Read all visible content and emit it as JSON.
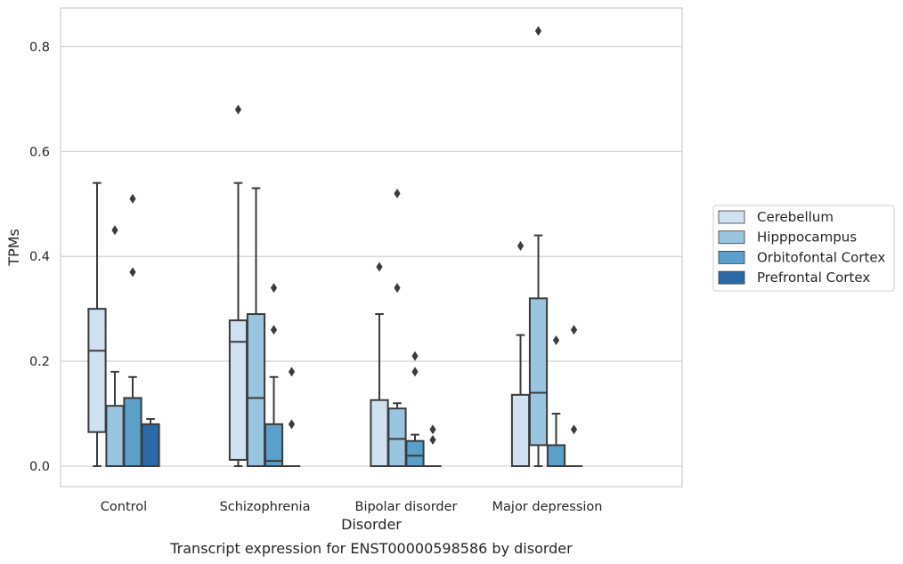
{
  "caption": "Transcript expression for ENST00000598586 by disorder",
  "chart_data": {
    "type": "box",
    "xlabel": "Disorder",
    "ylabel": "TPMs",
    "ylim": [
      -0.04,
      0.875
    ],
    "yticks": [
      "0.0",
      "0.2",
      "0.4",
      "0.6",
      "0.8"
    ],
    "grid": "horizontal",
    "legend_position": "right",
    "categories": [
      "Control",
      "Schizophrenia",
      "Bipolar disorder",
      "Major depression"
    ],
    "series": [
      {
        "name": "Cerebellum",
        "color": "#d0e1f2",
        "boxes": [
          {
            "whislo": 0.0,
            "q1": 0.065,
            "med": 0.22,
            "q3": 0.3,
            "whishi": 0.54,
            "fliers": []
          },
          {
            "whislo": 0.0,
            "q1": 0.012,
            "med": 0.237,
            "q3": 0.278,
            "whishi": 0.54,
            "fliers": [
              0.68
            ]
          },
          {
            "whislo": 0.0,
            "q1": 0.0,
            "med": 0.0,
            "q3": 0.126,
            "whishi": 0.29,
            "fliers": [
              0.38
            ]
          },
          {
            "whislo": 0.0,
            "q1": 0.0,
            "med": 0.0,
            "q3": 0.136,
            "whishi": 0.25,
            "fliers": [
              0.42
            ]
          }
        ]
      },
      {
        "name": "Hipppocampus",
        "color": "#9ac5e0",
        "boxes": [
          {
            "whislo": 0.0,
            "q1": 0.0,
            "med": 0.0,
            "q3": 0.115,
            "whishi": 0.18,
            "fliers": [
              0.45
            ]
          },
          {
            "whislo": 0.0,
            "q1": 0.0,
            "med": 0.13,
            "q3": 0.29,
            "whishi": 0.53,
            "fliers": []
          },
          {
            "whislo": 0.0,
            "q1": 0.0,
            "med": 0.052,
            "q3": 0.11,
            "whishi": 0.12,
            "fliers": [
              0.34,
              0.52
            ]
          },
          {
            "whislo": 0.0,
            "q1": 0.04,
            "med": 0.14,
            "q3": 0.32,
            "whishi": 0.44,
            "fliers": [
              0.83
            ]
          }
        ]
      },
      {
        "name": "Orbitofontal Cortex",
        "color": "#5b9fcb",
        "boxes": [
          {
            "whislo": 0.0,
            "q1": 0.0,
            "med": 0.0,
            "q3": 0.13,
            "whishi": 0.17,
            "fliers": [
              0.37,
              0.51
            ]
          },
          {
            "whislo": 0.0,
            "q1": 0.0,
            "med": 0.01,
            "q3": 0.08,
            "whishi": 0.17,
            "fliers": [
              0.26,
              0.34
            ]
          },
          {
            "whislo": 0.0,
            "q1": 0.0,
            "med": 0.02,
            "q3": 0.048,
            "whishi": 0.06,
            "fliers": [
              0.18,
              0.21
            ]
          },
          {
            "whislo": 0.0,
            "q1": 0.0,
            "med": 0.0,
            "q3": 0.04,
            "whishi": 0.1,
            "fliers": [
              0.24
            ]
          }
        ]
      },
      {
        "name": "Prefrontal Cortex",
        "color": "#2b6aa9",
        "boxes": [
          {
            "whislo": 0.0,
            "q1": 0.0,
            "med": 0.0,
            "q3": 0.08,
            "whishi": 0.09,
            "fliers": []
          },
          {
            "whislo": 0.0,
            "q1": 0.0,
            "med": 0.0,
            "q3": 0.0,
            "whishi": 0.0,
            "fliers": [
              0.08,
              0.18
            ]
          },
          {
            "whislo": 0.0,
            "q1": 0.0,
            "med": 0.0,
            "q3": 0.0,
            "whishi": 0.0,
            "fliers": [
              0.05,
              0.07
            ]
          },
          {
            "whislo": 0.0,
            "q1": 0.0,
            "med": 0.0,
            "q3": 0.0,
            "whishi": 0.0,
            "fliers": [
              0.07,
              0.26
            ]
          }
        ]
      }
    ]
  }
}
